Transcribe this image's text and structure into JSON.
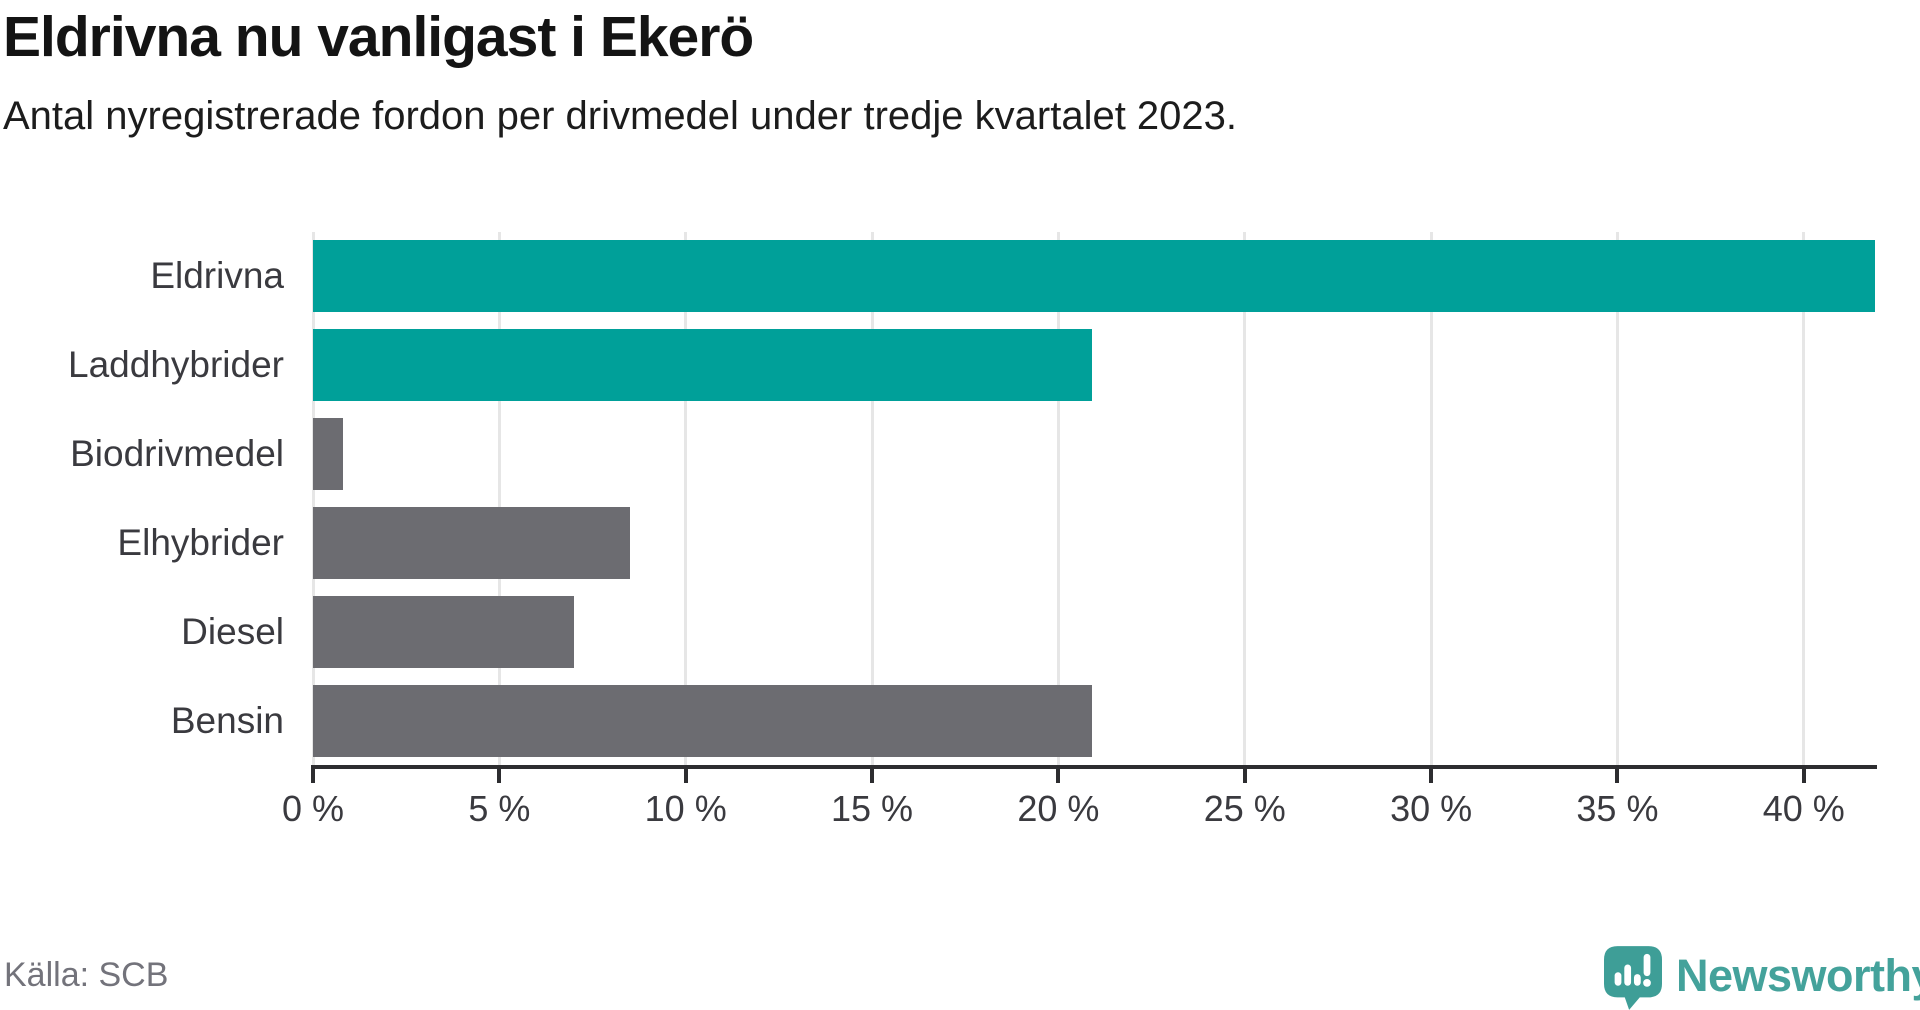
{
  "header": {
    "title": "Eldrivna nu vanligast i Ekerö",
    "subtitle": "Antal nyregistrerade fordon per drivmedel under tredje kvartalet 2023."
  },
  "footer": {
    "source": "Källa: SCB",
    "brand_name": "Newsworthy",
    "brand_icon": "speech-bubble-with-bar-chart-and-exclamation"
  },
  "colors": {
    "accent_teal": "#00A099",
    "neutral_gray": "#6C6C71",
    "gridline": "#E6E6E6",
    "axis": "#2D2D30",
    "text_labels": "#3A3A3F",
    "title_text": "#141414",
    "source_text": "#73737B",
    "brand_teal": "#44A29B"
  },
  "chart_data": {
    "type": "bar",
    "orientation": "horizontal",
    "title": "Eldrivna nu vanligast i Ekerö",
    "subtitle": "Antal nyregistrerade fordon per drivmedel under tredje kvartalet 2023.",
    "xlabel": "",
    "ylabel": "",
    "unit": "%",
    "categories": [
      "Eldrivna",
      "Laddhybrider",
      "Biodrivmedel",
      "Elhybrider",
      "Diesel",
      "Bensin"
    ],
    "values": [
      41.9,
      20.9,
      0.8,
      8.5,
      7.0,
      20.9
    ],
    "bar_colors": [
      "#00A099",
      "#00A099",
      "#6C6C71",
      "#6C6C71",
      "#6C6C71",
      "#6C6C71"
    ],
    "xlim": [
      0,
      41.97
    ],
    "x_ticks": [
      0,
      5,
      10,
      15,
      20,
      25,
      30,
      35,
      40
    ],
    "x_tick_labels": [
      "0 %",
      "5 %",
      "10 %",
      "15 %",
      "20 %",
      "25 %",
      "30 %",
      "35 %",
      "40 %"
    ],
    "grid": true,
    "legend": "none",
    "note": "first bar reaches plot right edge (clipped at axis max)"
  }
}
